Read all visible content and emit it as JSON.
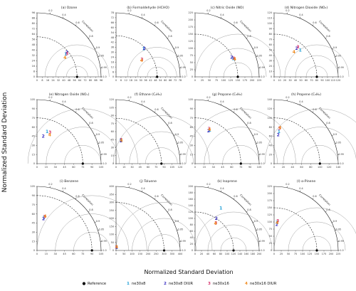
{
  "figure": {
    "ylabel": "Normalized Standard Deviation",
    "xlabel": "Normalized Standard Deviation",
    "correlation_label": "Correlation",
    "correlation_ticks": [
      "0.2",
      "0.4",
      "0.6",
      "0.8",
      "0.9",
      "0.95",
      "0.99",
      "1.0"
    ],
    "legend": [
      {
        "marker": "●",
        "label": "Reference",
        "color": "#000000"
      },
      {
        "marker": "1",
        "label": "ne30x8",
        "color": "#1f9fd6"
      },
      {
        "marker": "2",
        "label": "ne30x8 DIUR",
        "color": "#3a2fc2"
      },
      {
        "marker": "3",
        "label": "ne30x16",
        "color": "#d6336c"
      },
      {
        "marker": "4",
        "label": "ne30x16 DIUR",
        "color": "#f08a1c"
      }
    ]
  },
  "chart_data": [
    {
      "type": "scatter",
      "subplot_title": "(a) Ozone",
      "std_ticks": [
        "0",
        "8",
        "16",
        "24",
        "32",
        "40",
        "48",
        "56",
        "64",
        "72",
        "80",
        "88",
        "96"
      ],
      "reference_std": 60,
      "points": [
        {
          "id": "1",
          "std": 55,
          "corr": 0.78
        },
        {
          "id": "2",
          "std": 58,
          "corr": 0.77
        },
        {
          "id": "3",
          "std": 57,
          "corr": 0.79
        },
        {
          "id": "4",
          "std": 51,
          "corr": 0.82
        }
      ]
    },
    {
      "type": "scatter",
      "subplot_title": "(b) Formaldehyde (HCHO)",
      "std_ticks": [
        "0",
        "6",
        "12",
        "18",
        "24",
        "30",
        "36",
        "42",
        "48",
        "54",
        "60",
        "66",
        "72",
        "78"
      ],
      "reference_std": 50,
      "points": [
        {
          "id": "1",
          "std": 48,
          "corr": 0.7
        },
        {
          "id": "2",
          "std": 49,
          "corr": 0.7
        },
        {
          "id": "3",
          "std": 38,
          "corr": 0.83
        },
        {
          "id": "4",
          "std": 37,
          "corr": 0.84
        }
      ]
    },
    {
      "type": "scatter",
      "subplot_title": "(c) Nitric Oxide (NO)",
      "std_ticks": [
        "0",
        "25",
        "50",
        "75",
        "100",
        "125",
        "150",
        "175",
        "200",
        "225"
      ],
      "reference_std": 150,
      "points": [
        {
          "id": "1",
          "std": 148,
          "corr": 0.9
        },
        {
          "id": "2",
          "std": 146,
          "corr": 0.88
        },
        {
          "id": "3",
          "std": 151,
          "corr": 0.9
        },
        {
          "id": "4",
          "std": 153,
          "corr": 0.91
        }
      ]
    },
    {
      "type": "scatter",
      "subplot_title": "(d) Nitrogen Dioxide (NO₂)",
      "std_ticks": [
        "0",
        "10",
        "20",
        "30",
        "40",
        "50",
        "60",
        "70",
        "80",
        "90",
        "100",
        "110",
        "120"
      ],
      "reference_std": 80,
      "points": [
        {
          "id": "1",
          "std": 70,
          "corr": 0.7
        },
        {
          "id": "2",
          "std": 68,
          "corr": 0.62
        },
        {
          "id": "3",
          "std": 72,
          "corr": 0.62
        },
        {
          "id": "4",
          "std": 60,
          "corr": 0.62
        }
      ]
    },
    {
      "type": "scatter",
      "subplot_title": "(e) Nitrogen Oxide (NOₓ)",
      "std_ticks": [
        "0",
        "15",
        "30",
        "45",
        "60",
        "75",
        "90",
        "105"
      ],
      "reference_std": 75,
      "points": [
        {
          "id": "1",
          "std": 55,
          "corr": 0.3
        },
        {
          "id": "2",
          "std": 46,
          "corr": 0.22
        },
        {
          "id": "3",
          "std": 56,
          "corr": 0.38
        },
        {
          "id": "4",
          "std": 52,
          "corr": 0.4
        }
      ]
    },
    {
      "type": "scatter",
      "subplot_title": "(f) Ethane (C₂H₆)",
      "std_ticks": [
        "0",
        "15",
        "30",
        "45",
        "60",
        "75",
        "90",
        "105",
        "120"
      ],
      "reference_std": 85,
      "points": [
        {
          "id": "1",
          "std": 45,
          "corr": 0.2
        },
        {
          "id": "2",
          "std": 44,
          "corr": 0.21
        },
        {
          "id": "3",
          "std": 46,
          "corr": 0.21
        },
        {
          "id": "4",
          "std": 45,
          "corr": 0.22
        }
      ]
    },
    {
      "type": "scatter",
      "subplot_title": "(g) Propane (C₃H₈)",
      "std_ticks": [
        "0",
        "15",
        "30",
        "45",
        "60",
        "75",
        "90",
        "105"
      ],
      "reference_std": 75,
      "points": [
        {
          "id": "1",
          "std": 60,
          "corr": 0.4
        },
        {
          "id": "2",
          "std": 58,
          "corr": 0.38
        },
        {
          "id": "3",
          "std": 62,
          "corr": 0.37
        },
        {
          "id": "4",
          "std": 61,
          "corr": 0.39
        }
      ]
    },
    {
      "type": "scatter",
      "subplot_title": "(h) Propene (C₃H₆)",
      "std_ticks": [
        "0",
        "20",
        "40",
        "60",
        "80",
        "100",
        "120",
        "140"
      ],
      "reference_std": 100,
      "points": [
        {
          "id": "1",
          "std": 71,
          "corr": 0.15
        },
        {
          "id": "2",
          "std": 64,
          "corr": 0.14
        },
        {
          "id": "3",
          "std": 78,
          "corr": 0.15
        },
        {
          "id": "4",
          "std": 80,
          "corr": 0.16
        }
      ]
    },
    {
      "type": "scatter",
      "subplot_title": "(i) Benzene",
      "std_ticks": [
        "0",
        "15",
        "30",
        "45",
        "60",
        "75",
        "90",
        "105"
      ],
      "reference_std": 90,
      "points": [
        {
          "id": "1",
          "std": 55,
          "corr": 0.2
        },
        {
          "id": "2",
          "std": 53,
          "corr": 0.2
        },
        {
          "id": "3",
          "std": 57,
          "corr": 0.22
        },
        {
          "id": "4",
          "std": 58,
          "corr": 0.23
        }
      ]
    },
    {
      "type": "scatter",
      "subplot_title": "(j) Toluene",
      "std_ticks": [
        "0",
        "50",
        "100",
        "150",
        "200",
        "250",
        "300",
        "350",
        "400"
      ],
      "reference_std": 300,
      "points": [
        {
          "id": "1",
          "std": 20,
          "corr": 0.15
        },
        {
          "id": "2",
          "std": 21,
          "corr": 0.14
        },
        {
          "id": "3",
          "std": 22,
          "corr": 0.15
        },
        {
          "id": "4",
          "std": 23,
          "corr": 0.16
        }
      ]
    },
    {
      "type": "scatter",
      "subplot_title": "(k) Isoprene",
      "std_ticks": [
        "0",
        "20",
        "40",
        "60",
        "80",
        "100",
        "120",
        "140",
        "160",
        "180",
        "200"
      ],
      "reference_std": 120,
      "points": [
        {
          "id": "1",
          "std": 155,
          "corr": 0.52
        },
        {
          "id": "2",
          "std": 120,
          "corr": 0.55
        },
        {
          "id": "3",
          "std": 108,
          "corr": 0.6
        },
        {
          "id": "4",
          "std": 106,
          "corr": 0.6
        }
      ]
    },
    {
      "type": "scatter",
      "subplot_title": "(l) α-Pinene",
      "std_ticks": [
        "0",
        "25",
        "50",
        "75",
        "100",
        "125",
        "150",
        "175",
        "200",
        "225"
      ],
      "reference_std": 150,
      "points": [
        {
          "id": "1",
          "std": 100,
          "corr": 0.1
        },
        {
          "id": "2",
          "std": 92,
          "corr": 0.1
        },
        {
          "id": "3",
          "std": 105,
          "corr": 0.12
        },
        {
          "id": "4",
          "std": 98,
          "corr": 0.11
        }
      ]
    }
  ]
}
